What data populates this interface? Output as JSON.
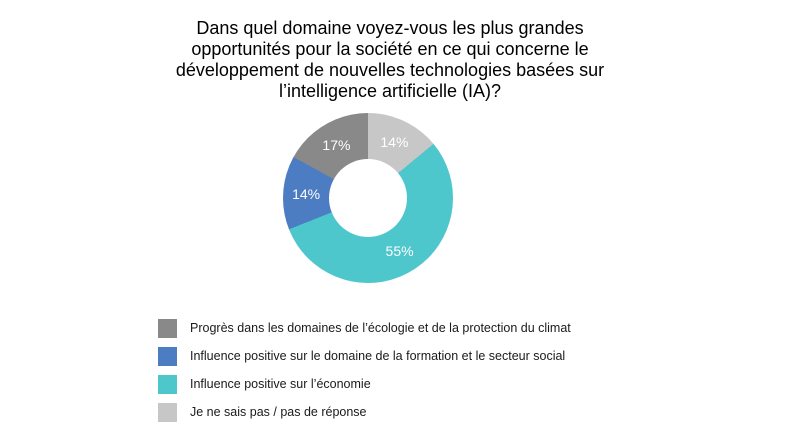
{
  "page": {
    "background": "#ffffff"
  },
  "title": {
    "lines": [
      "Dans quel domaine voyez-vous les plus grandes",
      "opportunités pour la société en ce qui concerne le",
      "développement de nouvelles technologies basées sur",
      "l’intelligence artificielle (IA)?"
    ]
  },
  "chart_data": {
    "type": "pie",
    "subtype": "donut",
    "title": "Dans quel domaine voyez-vous les plus grandes opportunités pour la société en ce qui concerne le développement de nouvelles technologies basées sur l’intelligence artificielle (IA)?",
    "unit": "%",
    "donut_hole_ratio": 0.46,
    "start_angle_deg": 0,
    "legend_position": "bottom-left",
    "draw_order_clockwise_from_top": [
      3,
      2,
      1,
      0
    ],
    "slices": [
      {
        "label": "Progrès dans les domaines de l’écologie et de la protection du climat",
        "value": 17,
        "display": "17%",
        "color": "#898989"
      },
      {
        "label": "Influence positive sur le domaine de la formation et le secteur social",
        "value": 14,
        "display": "14%",
        "color": "#4C7CC2"
      },
      {
        "label": "Influence positive sur l’économie",
        "value": 55,
        "display": "55%",
        "color": "#4DC6CC"
      },
      {
        "label": "Je ne sais pas / pas de réponse",
        "value": 14,
        "display": "14%",
        "color": "#C7C7C7"
      }
    ],
    "value_label_color": "#ffffff",
    "label_radius_px": 62,
    "outer_radius_px": 85
  }
}
